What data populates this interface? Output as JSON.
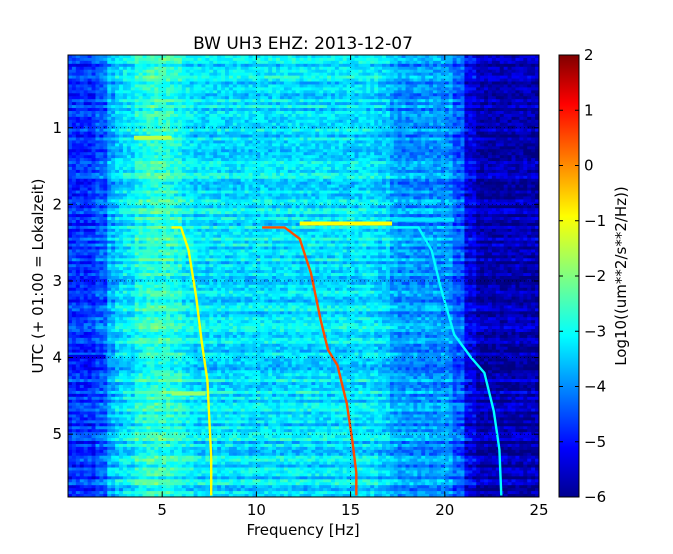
{
  "chart_data": {
    "type": "heatmap",
    "title": "BW UH3 EHZ: 2013-12-07",
    "xlabel": "Frequency [Hz]",
    "ylabel": "UTC (+ 01:00 = Lokalzeit)",
    "xlim": [
      0,
      25
    ],
    "ylim": [
      5.82,
      0.05
    ],
    "x_ticks": [
      5,
      10,
      15,
      20,
      25
    ],
    "x_tick_labels": [
      "5",
      "10",
      "15",
      "20",
      "25"
    ],
    "y_ticks": [
      1,
      2,
      3,
      4,
      5
    ],
    "y_tick_labels": [
      "1",
      "2",
      "3",
      "4",
      "5"
    ],
    "grid": true,
    "colormap": "jet",
    "colorbar": {
      "label": "Log10((um**2/s**2/Hz))",
      "range": [
        -6,
        2
      ],
      "ticks": [
        2,
        1,
        0,
        -1,
        -2,
        -3,
        -4,
        -5,
        -6
      ],
      "tick_labels": [
        "2",
        "1",
        "0",
        "−1",
        "−2",
        "−3",
        "−4",
        "−5",
        "−6"
      ]
    },
    "background_levels": {
      "0-2 Hz": -4.6,
      "2-3.5 Hz": -3.3,
      "3.5-6 Hz": -2.6,
      "6-17 Hz": -3.2,
      "17-21 Hz": -3.8,
      "21-25 Hz": -5.6
    },
    "series": [
      {
        "x": [
          5.5,
          6.0,
          6.4,
          6.8,
          7.1,
          7.4,
          7.5,
          7.6,
          7.6
        ],
        "y": [
          2.3,
          2.3,
          2.6,
          3.2,
          3.8,
          4.3,
          4.8,
          5.3,
          5.8
        ],
        "level": -1.0
      },
      {
        "x": [
          10.3,
          11.5,
          12.3,
          12.9,
          13.4,
          13.8,
          14.3,
          14.8,
          15.1,
          15.3,
          15.3
        ],
        "y": [
          2.3,
          2.3,
          2.45,
          2.9,
          3.5,
          3.9,
          4.1,
          4.6,
          5.1,
          5.5,
          5.8
        ],
        "level": 0.4
      },
      {
        "x": [
          17.4,
          18.6,
          19.3,
          19.8,
          20.5,
          21.4,
          22.1,
          22.6,
          22.9,
          23.0
        ],
        "y": [
          2.3,
          2.3,
          2.6,
          3.1,
          3.7,
          4.0,
          4.2,
          4.7,
          5.2,
          5.8
        ],
        "level": -3.0
      }
    ],
    "horizontal_bursts": [
      {
        "x": [
          12.3,
          17.2
        ],
        "y": 2.25,
        "level": -1.0
      },
      {
        "x": [
          17.2,
          20.5
        ],
        "y": 2.2,
        "level": -3.2
      },
      {
        "x": [
          5.5,
          7.3
        ],
        "y": 4.47,
        "level": -1.8
      },
      {
        "x": [
          3.5,
          5.5
        ],
        "y": 1.13,
        "level": -1.5
      },
      {
        "x": [
          0.0,
          2.0
        ],
        "y": 3.99,
        "level": -5.2
      }
    ]
  }
}
